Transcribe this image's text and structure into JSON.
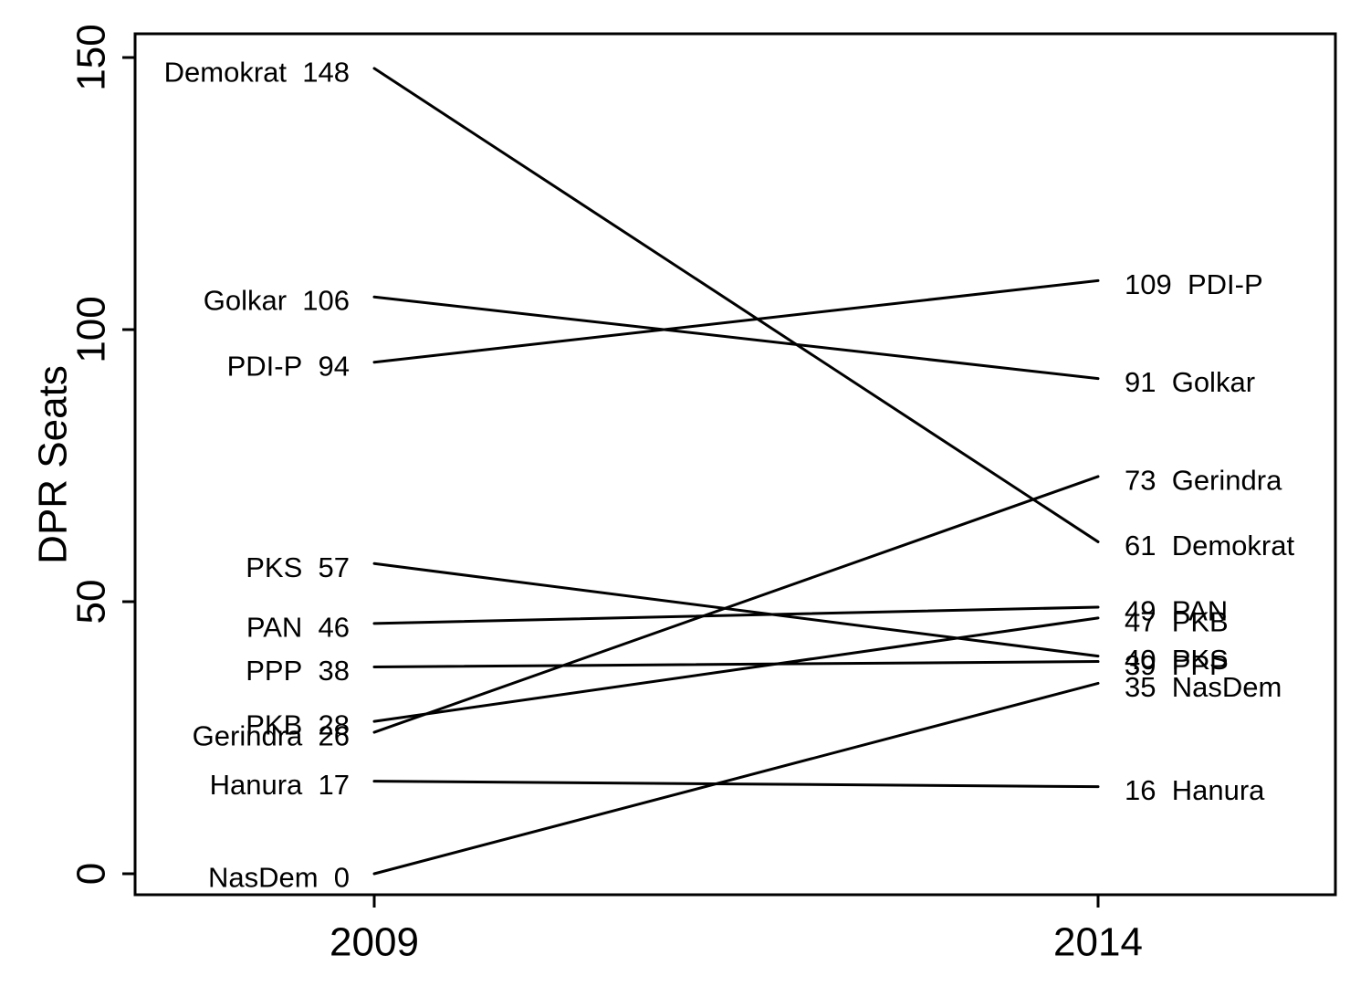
{
  "chart_data": {
    "type": "line",
    "subtype": "slopegraph",
    "title": "",
    "xlabel": "",
    "ylabel": "DPR Seats",
    "x_categories": [
      "2009",
      "2014"
    ],
    "yticks": [
      0,
      50,
      100,
      150
    ],
    "ylim": [
      0,
      150
    ],
    "grid": false,
    "legend": "none",
    "line_color": "#000000",
    "text_color": "#000000",
    "background": "#ffffff",
    "series": [
      {
        "name": "Demokrat",
        "values": [
          148,
          61
        ]
      },
      {
        "name": "Golkar",
        "values": [
          106,
          91
        ]
      },
      {
        "name": "PDI-P",
        "values": [
          94,
          109
        ]
      },
      {
        "name": "PKS",
        "values": [
          57,
          40
        ]
      },
      {
        "name": "PAN",
        "values": [
          46,
          49
        ]
      },
      {
        "name": "PPP",
        "values": [
          38,
          39
        ]
      },
      {
        "name": "PKB",
        "values": [
          28,
          47
        ]
      },
      {
        "name": "Gerindra",
        "values": [
          26,
          73
        ]
      },
      {
        "name": "Hanura",
        "values": [
          17,
          16
        ]
      },
      {
        "name": "NasDem",
        "values": [
          0,
          35
        ]
      }
    ]
  }
}
